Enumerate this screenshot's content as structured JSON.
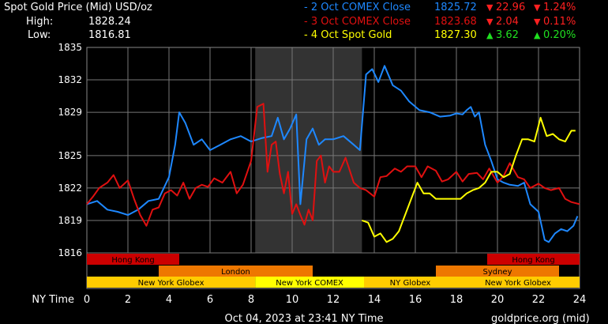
{
  "header": {
    "title": "Spot Gold Price (Mid) USD/oz",
    "high_label": "High:",
    "high_value": "1828.24",
    "low_label": "Low:",
    "low_value": "1816.81"
  },
  "legend": [
    {
      "label": "- 2 Oct COMEX Close",
      "price": "1825.72",
      "change": "22.96",
      "pct": "1.24%",
      "direction": "down",
      "color": "#1e88ff"
    },
    {
      "label": "- 3 Oct COMEX Close",
      "price": "1823.68",
      "change": "2.04",
      "pct": "0.11%",
      "direction": "down",
      "color": "#e01010"
    },
    {
      "label": "- 4 Oct Spot Gold",
      "price": "1827.30",
      "change": "3.62",
      "pct": "0.20%",
      "direction": "up",
      "color": "#ffff00"
    }
  ],
  "colors": {
    "series_blue": "#1e88ff",
    "series_red": "#e01010",
    "series_yellow": "#ffff00",
    "down": "#ff2020",
    "up": "#20e020",
    "comex_shade": "#333333",
    "hong_kong_band": "#cc0000",
    "london_band": "#ee7700",
    "sydney_band": "#ee7700",
    "new_york_band": "#ffcc00"
  },
  "chart_data": {
    "type": "line",
    "xlabel": "NY Time",
    "xlim": [
      0,
      24
    ],
    "ylim": [
      1816,
      1835
    ],
    "x_ticks": [
      0,
      2,
      4,
      6,
      8,
      10,
      12,
      14,
      16,
      18,
      20,
      22,
      24
    ],
    "y_ticks": [
      1816,
      1819,
      1822,
      1825,
      1829,
      1832,
      1835
    ],
    "shaded_region": [
      8.2,
      13.4
    ],
    "series": [
      {
        "name": "2 Oct COMEX Close",
        "color": "#1e88ff",
        "x": [
          0,
          0.5,
          1,
          1.5,
          2,
          2.5,
          3,
          3.5,
          4,
          4.3,
          4.5,
          4.8,
          5.2,
          5.6,
          6,
          6.5,
          7,
          7.5,
          8,
          8.5,
          9,
          9.3,
          9.6,
          9.9,
          10.2,
          10.4,
          10.7,
          11,
          11.3,
          11.6,
          12,
          12.5,
          13,
          13.3,
          13.6,
          13.9,
          14.2,
          14.5,
          14.9,
          15.3,
          15.7,
          16.2,
          16.7,
          17.2,
          17.7,
          18,
          18.3,
          18.5,
          18.7,
          18.9,
          19.1,
          19.4,
          19.7,
          20,
          20.3,
          20.6,
          21,
          21.3,
          21.6,
          22,
          22.3,
          22.5,
          22.8,
          23.1,
          23.4,
          23.7,
          23.9
        ],
        "y": [
          1820.5,
          1820.8,
          1820,
          1819.8,
          1819.5,
          1820,
          1820.8,
          1821,
          1823,
          1826,
          1829,
          1828,
          1826,
          1826.5,
          1825.5,
          1826,
          1826.5,
          1826.8,
          1826.3,
          1826.6,
          1826.8,
          1828.5,
          1826.5,
          1827.5,
          1828.8,
          1820.5,
          1826.5,
          1827.5,
          1826,
          1826.5,
          1826.5,
          1826.8,
          1826,
          1825.5,
          1832.5,
          1833,
          1831.8,
          1833.3,
          1831.5,
          1831,
          1830,
          1829.2,
          1829,
          1828.6,
          1828.7,
          1828.9,
          1828.8,
          1829.2,
          1829.5,
          1828.6,
          1829,
          1826,
          1824.5,
          1822.8,
          1822.5,
          1822.3,
          1822.2,
          1822.5,
          1820.5,
          1819.8,
          1817.2,
          1817,
          1817.8,
          1818.2,
          1818,
          1818.5,
          1819.4
        ]
      },
      {
        "name": "3 Oct COMEX Close",
        "color": "#e01010",
        "x": [
          0,
          0.3,
          0.6,
          1,
          1.3,
          1.6,
          2,
          2.3,
          2.6,
          2.9,
          3.2,
          3.5,
          3.8,
          4.1,
          4.4,
          4.7,
          5,
          5.3,
          5.6,
          5.9,
          6.2,
          6.6,
          7,
          7.3,
          7.6,
          8,
          8.3,
          8.6,
          8.8,
          9,
          9.2,
          9.4,
          9.6,
          9.8,
          10,
          10.2,
          10.4,
          10.6,
          10.8,
          11,
          11.2,
          11.4,
          11.6,
          11.8,
          12,
          12.3,
          12.6,
          13,
          13.3,
          13.6,
          14,
          14.3,
          14.6,
          15,
          15.3,
          15.6,
          16,
          16.3,
          16.6,
          17,
          17.3,
          17.6,
          18,
          18.3,
          18.6,
          19,
          19.3,
          19.6,
          20,
          20.3,
          20.6,
          21,
          21.3,
          21.6,
          22,
          22.3,
          22.6,
          23,
          23.3,
          23.6,
          24
        ],
        "y": [
          1820.5,
          1821.2,
          1822,
          1822.5,
          1823.2,
          1822,
          1822.7,
          1821,
          1819.5,
          1818.5,
          1820,
          1820.2,
          1821.5,
          1821.8,
          1821.3,
          1822.5,
          1821,
          1822,
          1822.3,
          1822.1,
          1822.9,
          1822.5,
          1823.5,
          1821.5,
          1822.3,
          1824.5,
          1829.5,
          1829.8,
          1823.5,
          1826,
          1826.3,
          1823.3,
          1821.5,
          1823.5,
          1819.6,
          1820.5,
          1819.5,
          1818.6,
          1820,
          1819,
          1824.5,
          1825,
          1822.5,
          1824,
          1823.5,
          1823.5,
          1824.8,
          1822.5,
          1822,
          1821.8,
          1821.2,
          1823,
          1823.1,
          1823.8,
          1823.5,
          1824,
          1824,
          1823,
          1824,
          1823.6,
          1822.6,
          1822.8,
          1823.5,
          1822.6,
          1823.3,
          1823.4,
          1822.8,
          1823.8,
          1822.5,
          1823.1,
          1824.3,
          1823,
          1822.8,
          1822,
          1822.4,
          1822,
          1821.8,
          1822,
          1821,
          1820.7,
          1820.5
        ]
      },
      {
        "name": "4 Oct Spot Gold",
        "color": "#ffff00",
        "x": [
          13.4,
          13.7,
          14,
          14.3,
          14.6,
          14.9,
          15.2,
          15.5,
          15.8,
          16.1,
          16.4,
          16.7,
          17,
          17.3,
          17.6,
          17.9,
          18.2,
          18.5,
          18.8,
          19.1,
          19.4,
          19.7,
          20,
          20.3,
          20.6,
          20.9,
          21.2,
          21.5,
          21.8,
          22.1,
          22.4,
          22.7,
          23,
          23.3,
          23.6,
          23.8
        ],
        "y": [
          1819,
          1818.8,
          1817.5,
          1817.8,
          1817,
          1817.3,
          1818,
          1819.5,
          1821,
          1822.5,
          1821.5,
          1821.5,
          1821,
          1821,
          1821,
          1821,
          1821,
          1821.5,
          1821.8,
          1822,
          1822.5,
          1823.5,
          1823.5,
          1823,
          1823.3,
          1825,
          1826.5,
          1826.5,
          1826.3,
          1828.5,
          1826.8,
          1827,
          1826.5,
          1826.3,
          1827.3,
          1827.3
        ]
      }
    ],
    "sessions": [
      {
        "label": "Hong Kong",
        "row": 0,
        "start": 0,
        "end": 4.5,
        "color": "#cc0000"
      },
      {
        "label": "Hong Kong",
        "row": 0,
        "start": 19.5,
        "end": 24,
        "color": "#cc0000"
      },
      {
        "label": "London",
        "row": 1,
        "start": 3.5,
        "end": 11,
        "color": "#ee7700"
      },
      {
        "label": "Sydney",
        "row": 1,
        "start": 17,
        "end": 23,
        "color": "#ee7700"
      },
      {
        "label": "New York Globex",
        "row": 2,
        "start": 0,
        "end": 8.2,
        "color": "#ffcc00"
      },
      {
        "label": "New York COMEX",
        "row": 2,
        "start": 8.2,
        "end": 13.5,
        "color": "#ffff00"
      },
      {
        "label": "NY Globex",
        "row": 2,
        "start": 13.5,
        "end": 18,
        "color": "#ffcc00"
      },
      {
        "label": "New York Globex",
        "row": 2,
        "start": 18,
        "end": 24,
        "color": "#ffcc00"
      }
    ]
  },
  "footer": {
    "timestamp": "Oct 04, 2023 at 23:41 NY Time",
    "source": "goldprice.org (mid)"
  }
}
